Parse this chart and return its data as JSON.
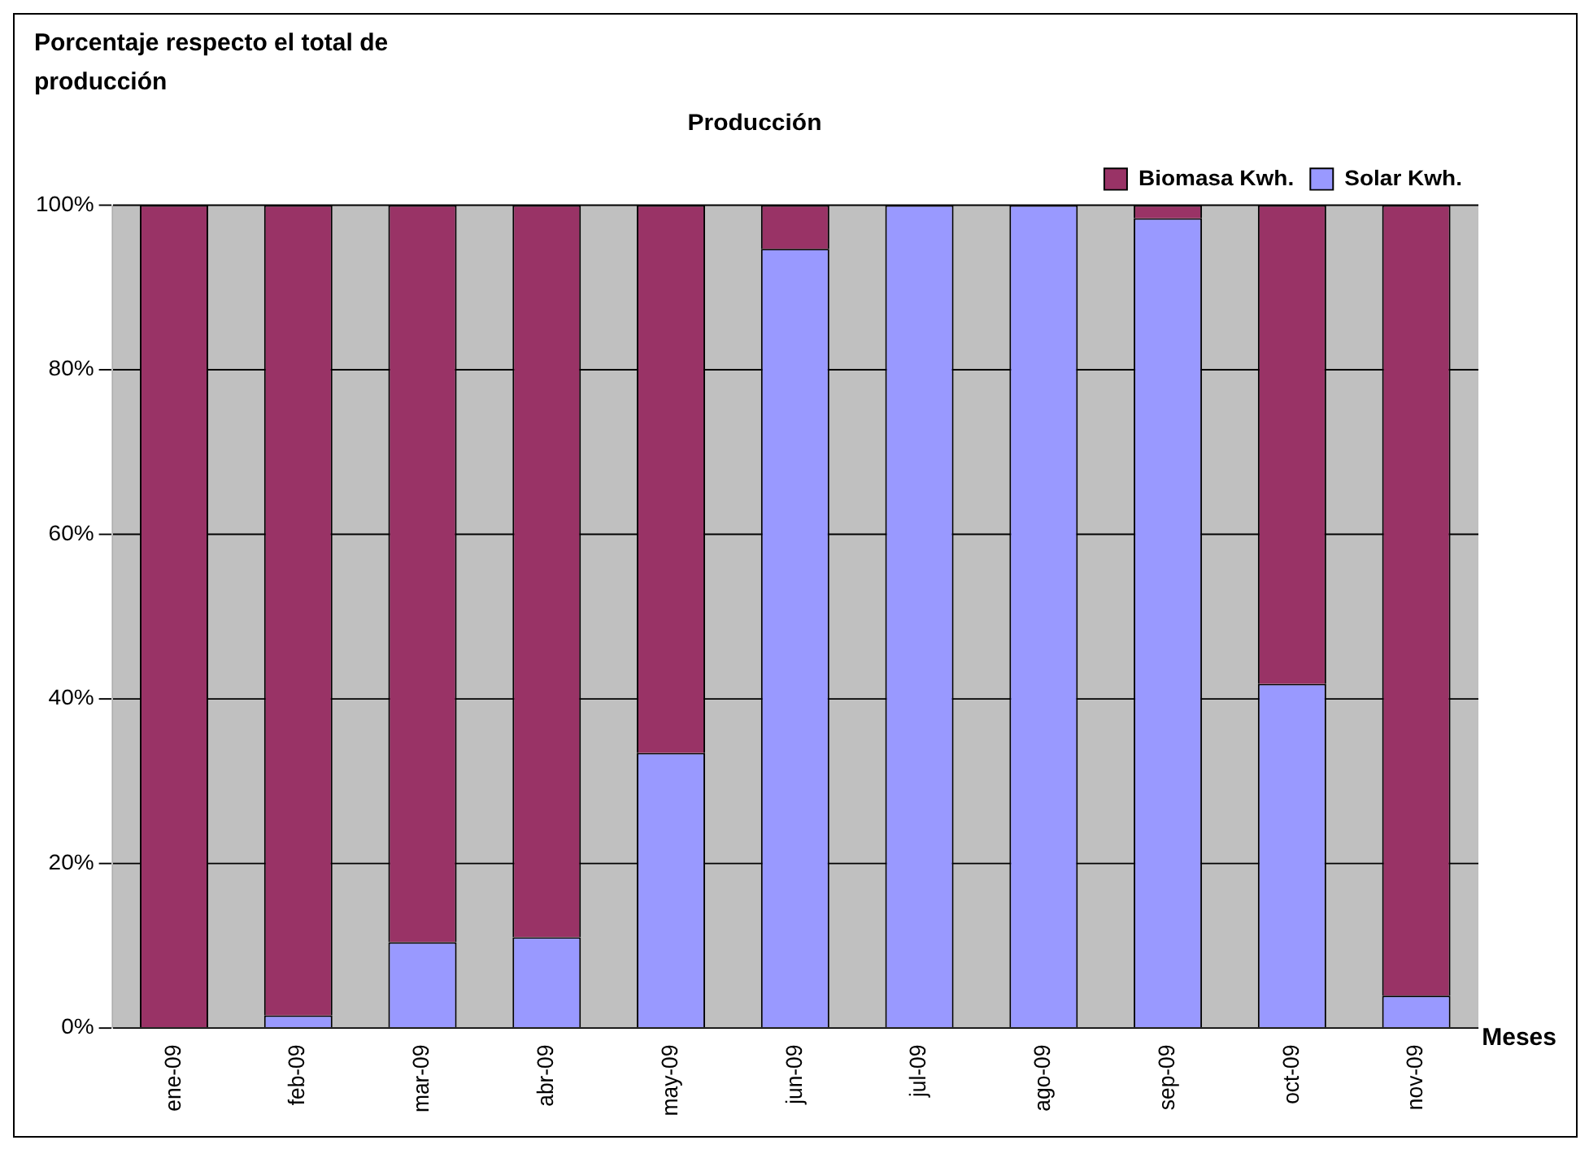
{
  "chart_data": {
    "type": "bar",
    "title": "Producción",
    "xlabel": "Meses",
    "ylabel": "Porcentaje respecto el total de producción",
    "categories": [
      "ene-09",
      "feb-09",
      "mar-09",
      "abr-09",
      "may-09",
      "jun-09",
      "jul-09",
      "ago-09",
      "sep-09",
      "oct-09",
      "nov-09"
    ],
    "series": [
      {
        "name": "Solar Kwh.",
        "color": "#9999ff",
        "values": [
          0,
          1.5,
          10.4,
          11,
          33.4,
          94.7,
          100,
          100,
          98.4,
          41.8,
          3.9
        ]
      },
      {
        "name": "Biomasa Kwh.",
        "color": "#993366",
        "values": [
          100,
          98.5,
          89.6,
          89,
          66.6,
          5.3,
          0,
          0,
          1.6,
          58.2,
          96.1
        ]
      }
    ],
    "stacked": true,
    "ylim": [
      0,
      100
    ],
    "yticks": [
      {
        "value": 0,
        "label": "0%"
      },
      {
        "value": 20,
        "label": "20%"
      },
      {
        "value": 40,
        "label": "40%"
      },
      {
        "value": 60,
        "label": "60%"
      },
      {
        "value": 80,
        "label": "80%"
      },
      {
        "value": 100,
        "label": "100%"
      }
    ],
    "grid": "y",
    "legend": "top right"
  }
}
